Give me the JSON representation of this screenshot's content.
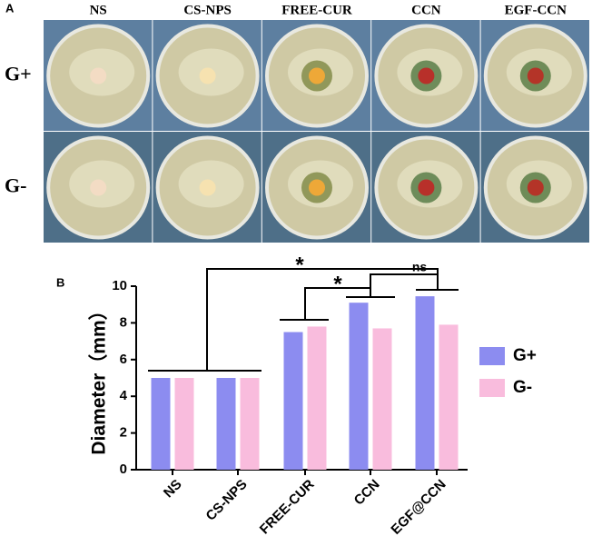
{
  "panel_a": {
    "label": "A",
    "columns": [
      "NS",
      "CS-NPS",
      "FREE-CUR",
      "CCN",
      "EGF-CCN"
    ],
    "rows": [
      "G+",
      "G-"
    ]
  },
  "chart_data": {
    "type": "bar",
    "panel_label": "B",
    "y_label": "Diameter（mm）",
    "categories": [
      "NS",
      "CS-NPS",
      "FREE-CUR",
      "CCN",
      "EGF@CCN"
    ],
    "series": [
      {
        "name": "G+",
        "color": "#8c8cf0",
        "values": [
          5,
          5,
          7.5,
          9.1,
          9.45
        ]
      },
      {
        "name": "G-",
        "color": "#f9bcdd",
        "values": [
          5,
          5,
          7.8,
          7.7,
          7.9
        ]
      }
    ],
    "ylim": [
      0,
      10
    ],
    "yticks": [
      0,
      2,
      4,
      6,
      8,
      10
    ],
    "grid": false,
    "legend": "right",
    "annotations": [
      "*",
      "*",
      "ns"
    ]
  }
}
